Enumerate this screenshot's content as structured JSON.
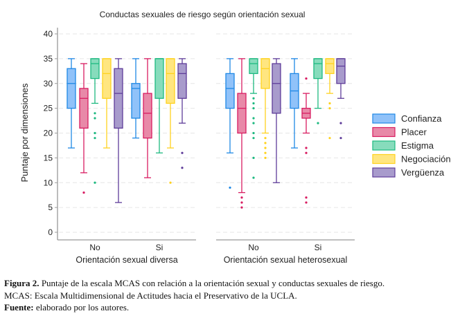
{
  "chart_data": {
    "type": "boxplot",
    "title": "Conductas sexuales de riesgo según orientación sexual",
    "ylabel": "Puntaje por dimensiones",
    "ylim": [
      0,
      40
    ],
    "yticks": [
      0,
      5,
      10,
      15,
      20,
      25,
      30,
      35,
      40
    ],
    "grid": true,
    "legend_position": "right",
    "series": [
      {
        "name": "Confianza",
        "color": "#1e88e5",
        "fill": "#90c2f9"
      },
      {
        "name": "Placer",
        "color": "#d81b60",
        "fill": "#e889a8"
      },
      {
        "name": "Estigma",
        "color": "#1db980",
        "fill": "#87dcbc"
      },
      {
        "name": "Negociación",
        "color": "#ffd21e",
        "fill": "#ffe680"
      },
      {
        "name": "Vergüenza",
        "color": "#5e3c99",
        "fill": "#a89bcc"
      }
    ],
    "panels": [
      {
        "label": "Orientación sexual diversa",
        "groups": [
          {
            "label": "No",
            "boxes": [
              {
                "low": 17,
                "q1": 25,
                "median": 30,
                "q3": 33,
                "high": 35,
                "outliers": []
              },
              {
                "low": 12,
                "q1": 21,
                "median": 27,
                "q3": 29,
                "high": 34,
                "outliers": [
                  8
                ]
              },
              {
                "low": 26,
                "q1": 31,
                "median": 34,
                "q3": 35,
                "high": 35,
                "outliers": [
                  24,
                  23,
                  20,
                  19,
                  10
                ]
              },
              {
                "low": 17,
                "q1": 27,
                "median": 32,
                "q3": 35,
                "high": 35,
                "outliers": []
              },
              {
                "low": 6,
                "q1": 21,
                "median": 28,
                "q3": 33,
                "high": 35,
                "outliers": []
              }
            ]
          },
          {
            "label": "Si",
            "boxes": [
              {
                "low": 19,
                "q1": 23,
                "median": 29,
                "q3": 30,
                "high": 35,
                "outliers": []
              },
              {
                "low": 11,
                "q1": 19,
                "median": 24,
                "q3": 28,
                "high": 35,
                "outliers": []
              },
              {
                "low": 16,
                "q1": 27,
                "median": 35,
                "q3": 35,
                "high": 35,
                "outliers": []
              },
              {
                "low": 17,
                "q1": 26,
                "median": 32,
                "q3": 35,
                "high": 35,
                "outliers": [
                  10
                ]
              },
              {
                "low": 22,
                "q1": 27,
                "median": 32,
                "q3": 34,
                "high": 35,
                "outliers": [
                  16,
                  13
                ]
              }
            ]
          }
        ]
      },
      {
        "label": "Orientación sexual heterosexual",
        "groups": [
          {
            "label": "No",
            "boxes": [
              {
                "low": 16,
                "q1": 25,
                "median": 29,
                "q3": 32,
                "high": 35,
                "outliers": [
                  9
                ]
              },
              {
                "low": 8,
                "q1": 20,
                "median": 25,
                "q3": 28,
                "high": 35,
                "outliers": [
                  7,
                  6,
                  5
                ]
              },
              {
                "low": 28,
                "q1": 32,
                "median": 34,
                "q3": 35,
                "high": 35,
                "outliers": [
                  27,
                  26,
                  25,
                  23,
                  22,
                  20,
                  19,
                  15,
                  11
                ]
              },
              {
                "low": 20,
                "q1": 29,
                "median": 33,
                "q3": 35,
                "high": 35,
                "outliers": [
                  19,
                  18,
                  17,
                  16,
                  15
                ]
              },
              {
                "low": 10,
                "q1": 24,
                "median": 30,
                "q3": 34,
                "high": 35,
                "outliers": []
              }
            ]
          },
          {
            "label": "Si",
            "boxes": [
              {
                "low": 17,
                "q1": 25,
                "median": 28.5,
                "q3": 32,
                "high": 35,
                "outliers": []
              },
              {
                "low": 20,
                "q1": 23,
                "median": 24,
                "q3": 25,
                "high": 28,
                "outliers": [
                  31,
                  17,
                  16,
                  7,
                  6
                ]
              },
              {
                "low": 25,
                "q1": 31,
                "median": 34,
                "q3": 35,
                "high": 35,
                "outliers": [
                  22
                ]
              },
              {
                "low": 28,
                "q1": 32,
                "median": 34,
                "q3": 35,
                "high": 35,
                "outliers": [
                  26,
                  25,
                  19
                ]
              },
              {
                "low": 27,
                "q1": 30,
                "median": 33.5,
                "q3": 35,
                "high": 35,
                "outliers": [
                  22,
                  19
                ]
              }
            ]
          }
        ]
      }
    ]
  },
  "caption": {
    "figure_label": "Figura 2.",
    "figure_text": " Puntaje de la escala MCAS con relación a la orientación sexual y conductas sexuales de riesgo.",
    "line2": "MCAS: Escala Multidimensional de Actitudes hacia el Preservativo de la UCLA.",
    "source_label": "Fuente:",
    "source_text": " elaborado por los autores."
  }
}
